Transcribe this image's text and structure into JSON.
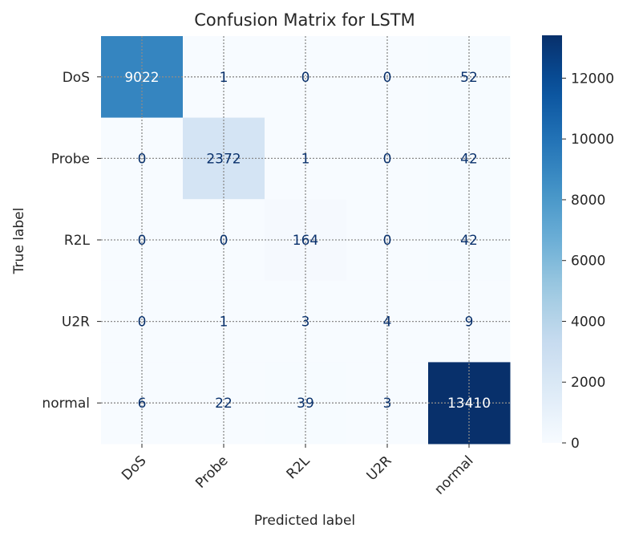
{
  "chart_data": {
    "type": "heatmap",
    "title": "Confusion Matrix for LSTM",
    "xlabel": "Predicted label",
    "ylabel": "True label",
    "x_categories": [
      "DoS",
      "Probe",
      "R2L",
      "U2R",
      "normal"
    ],
    "y_categories": [
      "DoS",
      "Probe",
      "R2L",
      "U2R",
      "normal"
    ],
    "matrix": [
      [
        9022,
        1,
        0,
        0,
        52
      ],
      [
        0,
        2372,
        1,
        0,
        42
      ],
      [
        0,
        0,
        164,
        0,
        42
      ],
      [
        0,
        1,
        3,
        4,
        9
      ],
      [
        6,
        22,
        39,
        3,
        13410
      ]
    ],
    "colormap": "Blues",
    "vmin": 0,
    "vmax": 13410,
    "colorbar_ticks": [
      0,
      2000,
      4000,
      6000,
      8000,
      10000,
      12000
    ],
    "grid": true,
    "colors": {
      "cmap_low": "#f7fbff",
      "cmap_high": "#08306b",
      "text_dark_cell": "#ffffff",
      "text_light_cell": "#08306b"
    }
  }
}
